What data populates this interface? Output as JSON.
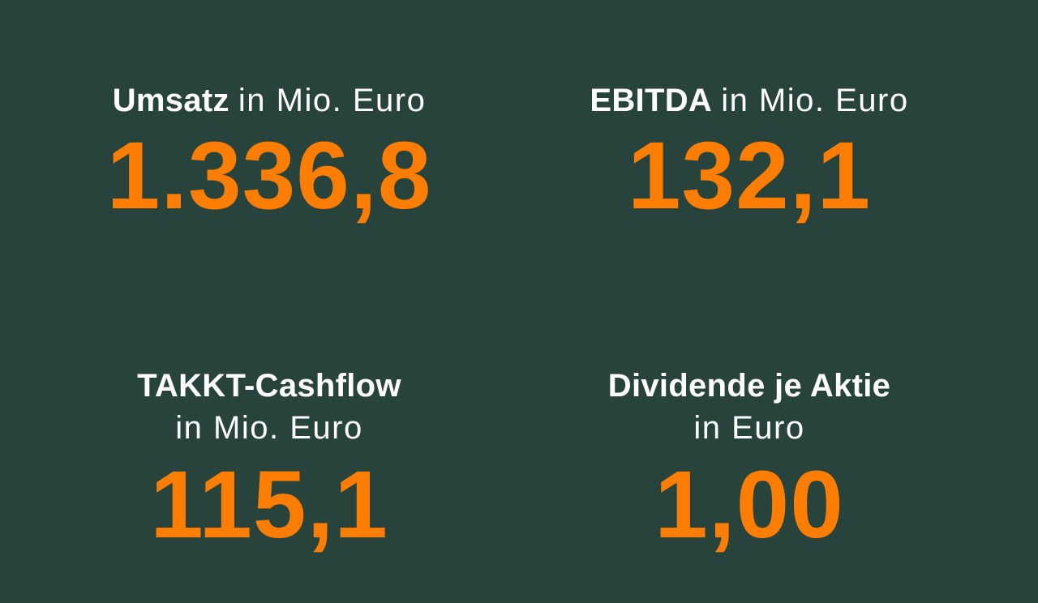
{
  "colors": {
    "background": "#28423c",
    "label": "#ffffff",
    "value": "#ff7d00"
  },
  "kpis": [
    {
      "title_bold": "Umsatz",
      "title_regular": "in Mio. Euro",
      "value": "1.336,8"
    },
    {
      "title_bold": "EBITDA",
      "title_regular": "in Mio. Euro",
      "value": "132,1"
    },
    {
      "title_bold": "TAKKT-Cashflow",
      "title_regular": "in Mio. Euro",
      "value": "115,1"
    },
    {
      "title_bold": "Dividende je Aktie",
      "title_regular": "in Euro",
      "value": "1,00"
    }
  ]
}
